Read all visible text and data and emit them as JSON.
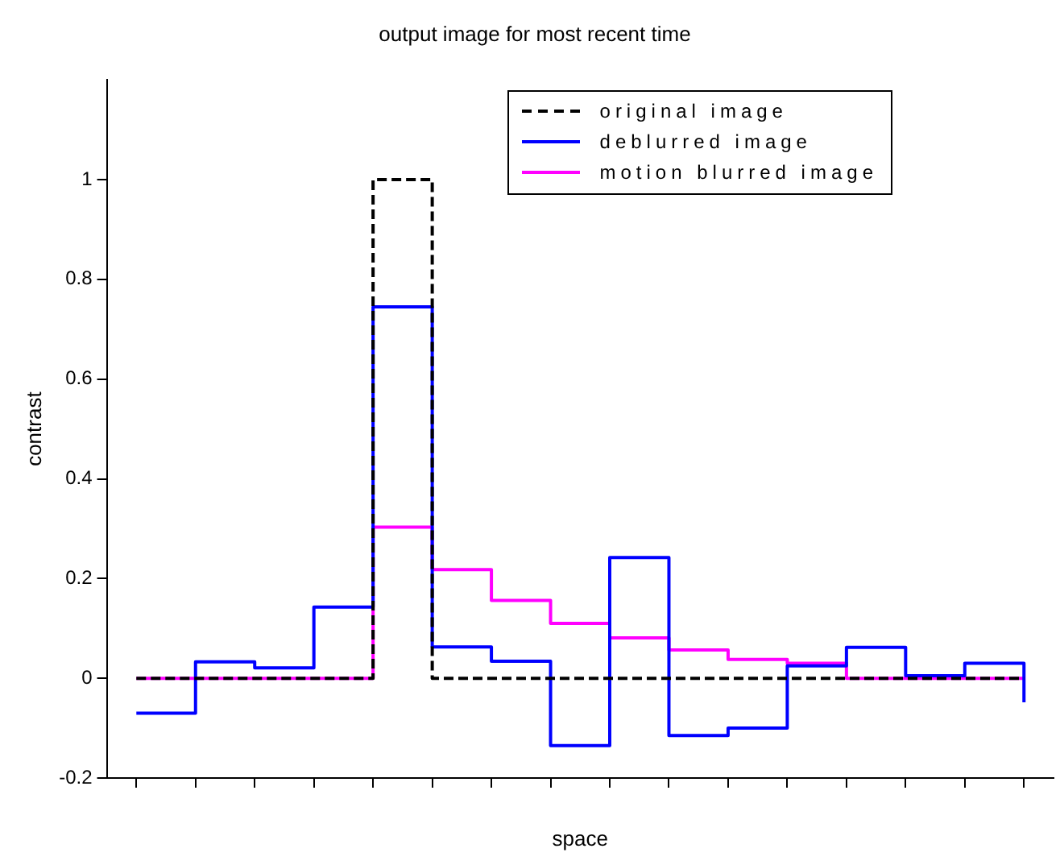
{
  "chart_data": {
    "type": "step",
    "title": "output image for most recent time",
    "xlabel": "space",
    "ylabel": "contrast",
    "categories": [
      null,
      null,
      null,
      null,
      null,
      null,
      null,
      null,
      null,
      null,
      null,
      null,
      null,
      null,
      null,
      null
    ],
    "ylim": [
      -0.2,
      1.2
    ],
    "yticks": [
      -0.2,
      0,
      0.2,
      0.4,
      0.6,
      0.8,
      1
    ],
    "legend": "top right",
    "series": [
      {
        "name": "original image",
        "color": "#000000",
        "line_style": "dashed",
        "values": [
          0,
          0,
          0,
          0,
          1,
          0,
          0,
          0,
          0,
          0,
          0,
          0,
          0,
          0,
          0,
          0
        ]
      },
      {
        "name": "deblurred image",
        "color": "#0000ff",
        "line_style": "solid",
        "values": [
          -0.07,
          0.033,
          0.021,
          0.143,
          0.745,
          0.063,
          0.034,
          -0.135,
          0.242,
          -0.115,
          -0.1,
          0.025,
          0.062,
          0.005,
          0.03,
          -0.048
        ]
      },
      {
        "name": "motion blurred image",
        "color": "#ff00ff",
        "line_style": "solid",
        "values": [
          0,
          0,
          0,
          0,
          0.303,
          0.218,
          0.156,
          0.11,
          0.081,
          0.057,
          0.038,
          0.03,
          0,
          0,
          0,
          0
        ]
      }
    ]
  }
}
